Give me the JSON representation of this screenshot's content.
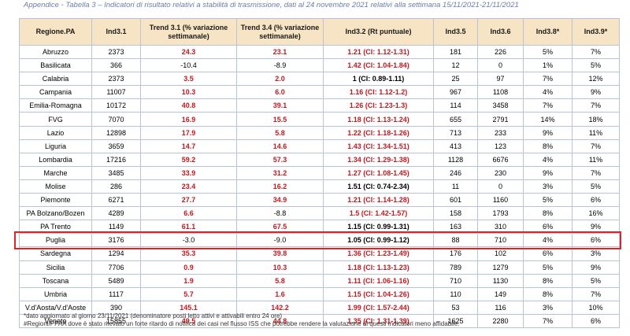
{
  "caption": "Appendice - Tabella 3 – Indicatori di risultato relativi a stabilità di trasmissione, dati al 24 novembre 2021 relativi alla settimana 15/11/2021-21/11/2021",
  "headers": [
    "Regione.PA",
    "Ind3.1",
    "Trend 3.1 (% variazione settimanale)",
    "Trend 3.4 (% variazione settimanale)",
    "Ind3.2 (Rt puntuale)",
    "Ind3.5",
    "Ind3.6",
    "Ind3.8*",
    "Ind3.9*"
  ],
  "rows": [
    {
      "region": "Abruzzo",
      "ind31": "2373",
      "t31": "24.3",
      "t31red": true,
      "t34": "23.1",
      "t34red": true,
      "ind32": "1.21 (CI: 1.12-1.31)",
      "ind32red": true,
      "ind35": "181",
      "ind36": "226",
      "ind38": "5%",
      "ind39": "7%"
    },
    {
      "region": "Basilicata",
      "ind31": "366",
      "t31": "-10.4",
      "t31red": false,
      "t34": "-8.9",
      "t34red": false,
      "ind32": "1.42 (CI: 1.04-1.84)",
      "ind32red": true,
      "ind35": "12",
      "ind36": "0",
      "ind38": "1%",
      "ind39": "5%"
    },
    {
      "region": "Calabria",
      "ind31": "2373",
      "t31": "3.5",
      "t31red": true,
      "t34": "2.0",
      "t34red": true,
      "ind32": "1 (CI: 0.89-1.11)",
      "ind32red": false,
      "ind35": "25",
      "ind36": "97",
      "ind38": "7%",
      "ind39": "12%"
    },
    {
      "region": "Campania",
      "ind31": "11007",
      "t31": "10.3",
      "t31red": true,
      "t34": "6.0",
      "t34red": true,
      "ind32": "1.16 (CI: 1.12-1.2)",
      "ind32red": true,
      "ind35": "967",
      "ind36": "1108",
      "ind38": "4%",
      "ind39": "9%"
    },
    {
      "region": "Emilia-Romagna",
      "ind31": "10172",
      "t31": "40.8",
      "t31red": true,
      "t34": "39.1",
      "t34red": true,
      "ind32": "1.26 (CI: 1.23-1.3)",
      "ind32red": true,
      "ind35": "114",
      "ind36": "3458",
      "ind38": "7%",
      "ind39": "7%"
    },
    {
      "region": "FVG",
      "ind31": "7070",
      "t31": "16.9",
      "t31red": true,
      "t34": "15.5",
      "t34red": true,
      "ind32": "1.18 (CI: 1.13-1.24)",
      "ind32red": true,
      "ind35": "655",
      "ind36": "2791",
      "ind38": "14%",
      "ind39": "18%"
    },
    {
      "region": "Lazio",
      "ind31": "12898",
      "t31": "17.9",
      "t31red": true,
      "t34": "5.8",
      "t34red": true,
      "ind32": "1.22 (CI: 1.18-1.26)",
      "ind32red": true,
      "ind35": "713",
      "ind36": "233",
      "ind38": "9%",
      "ind39": "11%"
    },
    {
      "region": "Liguria",
      "ind31": "3659",
      "t31": "14.7",
      "t31red": true,
      "t34": "14.6",
      "t34red": true,
      "ind32": "1.43 (CI: 1.34-1.51)",
      "ind32red": true,
      "ind35": "413",
      "ind36": "123",
      "ind38": "8%",
      "ind39": "7%"
    },
    {
      "region": "Lombardia",
      "ind31": "17216",
      "t31": "59.2",
      "t31red": true,
      "t34": "57.3",
      "t34red": true,
      "ind32": "1.34 (CI: 1.29-1.38)",
      "ind32red": true,
      "ind35": "1128",
      "ind36": "6676",
      "ind38": "4%",
      "ind39": "11%"
    },
    {
      "region": "Marche",
      "ind31": "3485",
      "t31": "33.9",
      "t31red": true,
      "t34": "31.2",
      "t34red": true,
      "ind32": "1.27 (CI: 1.08-1.45)",
      "ind32red": true,
      "ind35": "246",
      "ind36": "230",
      "ind38": "9%",
      "ind39": "7%"
    },
    {
      "region": "Molise",
      "ind31": "286",
      "t31": "23.4",
      "t31red": true,
      "t34": "16.2",
      "t34red": true,
      "ind32": "1.51 (CI: 0.74-2.34)",
      "ind32red": false,
      "ind35": "11",
      "ind36": "0",
      "ind38": "3%",
      "ind39": "5%"
    },
    {
      "region": "Piemonte",
      "ind31": "6271",
      "t31": "27.7",
      "t31red": true,
      "t34": "34.9",
      "t34red": true,
      "ind32": "1.21 (CI: 1.14-1.28)",
      "ind32red": true,
      "ind35": "601",
      "ind36": "1160",
      "ind38": "5%",
      "ind39": "6%"
    },
    {
      "region": "PA Bolzano/Bozen",
      "ind31": "4289",
      "t31": "6.6",
      "t31red": true,
      "t34": "-8.8",
      "t34red": false,
      "ind32": "1.5 (CI: 1.42-1.57)",
      "ind32red": true,
      "ind35": "158",
      "ind36": "1793",
      "ind38": "8%",
      "ind39": "16%"
    },
    {
      "region": "PA Trento",
      "ind31": "1149",
      "t31": "61.1",
      "t31red": true,
      "t34": "67.5",
      "t34red": true,
      "ind32": "1.15 (CI: 0.99-1.31)",
      "ind32red": false,
      "ind35": "163",
      "ind36": "310",
      "ind38": "6%",
      "ind39": "9%"
    },
    {
      "region": "Puglia",
      "ind31": "3176",
      "t31": "-3.0",
      "t31red": false,
      "t34": "-9.0",
      "t34red": false,
      "ind32": "1.05 (CI: 0.99-1.12)",
      "ind32red": false,
      "ind35": "88",
      "ind36": "710",
      "ind38": "4%",
      "ind39": "6%"
    },
    {
      "region": "Sardegna",
      "ind31": "1294",
      "t31": "35.3",
      "t31red": true,
      "t34": "39.8",
      "t34red": true,
      "ind32": "1.36 (CI: 1.23-1.49)",
      "ind32red": true,
      "ind35": "176",
      "ind36": "102",
      "ind38": "6%",
      "ind39": "3%"
    },
    {
      "region": "Sicilia",
      "ind31": "7706",
      "t31": "0.9",
      "t31red": true,
      "t34": "10.3",
      "t34red": true,
      "ind32": "1.18 (CI: 1.13-1.23)",
      "ind32red": true,
      "ind35": "789",
      "ind36": "1279",
      "ind38": "5%",
      "ind39": "9%"
    },
    {
      "region": "Toscana",
      "ind31": "5489",
      "t31": "1.9",
      "t31red": true,
      "t34": "5.8",
      "t34red": true,
      "ind32": "1.11 (CI: 1.06-1.16)",
      "ind32red": true,
      "ind35": "710",
      "ind36": "1130",
      "ind38": "8%",
      "ind39": "5%"
    },
    {
      "region": "Umbria",
      "ind31": "1117",
      "t31": "5.7",
      "t31red": true,
      "t34": "1.6",
      "t34red": true,
      "ind32": "1.15 (CI: 1.04-1.26)",
      "ind32red": true,
      "ind35": "110",
      "ind36": "149",
      "ind38": "8%",
      "ind39": "7%"
    },
    {
      "region": "V.d'Aosta/V.d'Aoste",
      "ind31": "390",
      "t31": "145.1",
      "t31red": true,
      "t34": "142.2",
      "t34red": true,
      "ind32": "1.99 (CI: 1.57-2.44)",
      "ind32red": true,
      "ind35": "53",
      "ind36": "116",
      "ind38": "3%",
      "ind39": "10%"
    },
    {
      "region": "Veneto",
      "ind31": "15855",
      "t31": "49.5",
      "t31red": true,
      "t34": "44.8",
      "t34red": true,
      "ind32": "1.35 (CI: 1.31-1.39)",
      "ind32red": true,
      "ind35": "1625",
      "ind36": "2280",
      "ind38": "7%",
      "ind39": "6%"
    }
  ],
  "highlighted_row": "Sardegna",
  "notes": [
    "*dato aggiornato al giorno 23/11/2021 (denominatore posti letto attivi e attivabili entro 24 ore)",
    "#Regioni/PPAA dove è stato rilevato un forte ritardo di notifica dei casi nel flusso ISS che potrebbe rendere la valutazione di questi indicatori meno affidabile."
  ],
  "colors": {
    "header_bg": "#f7e4c4",
    "red_value": "#c0191f",
    "highlight_border": "#d9262b",
    "grid": "#b8c4d6"
  }
}
